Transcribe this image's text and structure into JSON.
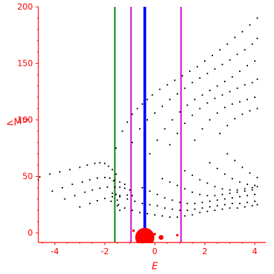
{
  "chart_data": {
    "type": "scatter",
    "title": "",
    "xlabel": "E",
    "ylabel": "<M>",
    "xlim": [
      -5,
      4.2
    ],
    "ylim": [
      -9,
      200
    ],
    "xticks": [
      -4,
      -2,
      0,
      2,
      4
    ],
    "yticks": [
      0,
      50,
      100,
      150,
      200
    ],
    "grid": false,
    "axis_color": "#ff0000",
    "point_color": "#000000",
    "vertical_lines": [
      {
        "x": -1.6,
        "color": "#008000"
      },
      {
        "x": -0.95,
        "color": "#cc00cc"
      },
      {
        "x": -0.4,
        "color": "#0000ff"
      },
      {
        "x": 1.05,
        "color": "#cc00cc"
      }
    ],
    "red_markers": [
      {
        "x": -0.4,
        "y": -4,
        "size": "large"
      },
      {
        "x": 0.25,
        "y": -4,
        "size": "small"
      },
      {
        "x": 0.0,
        "y": -1,
        "size": "tiny"
      },
      {
        "x": 0.9,
        "y": -2,
        "size": "tiny"
      },
      {
        "x": -0.85,
        "y": 2,
        "size": "tiny"
      }
    ],
    "series": [
      {
        "x": [
          -4.95,
          -4.6,
          -4.2,
          -3.8,
          -3.4,
          -3.0,
          -2.7,
          -2.4,
          -2.2,
          -2.0,
          -1.85,
          -1.7,
          -1.55
        ],
        "y": [
          47,
          49.5,
          52,
          54,
          56,
          58,
          60,
          61.5,
          62,
          61.5,
          59,
          56,
          52
        ]
      },
      {
        "x": [
          -4.1,
          -3.7,
          -3.3,
          -2.9,
          -2.6,
          -2.3,
          -2.0,
          -1.8,
          -1.6,
          -1.4,
          -1.2
        ],
        "y": [
          37,
          40,
          43,
          45,
          47,
          48.5,
          49,
          48.5,
          47,
          45,
          43
        ]
      },
      {
        "x": [
          -3.6,
          -3.2,
          -2.8,
          -2.5,
          -2.2,
          -1.9,
          -1.6,
          -1.4,
          -1.2,
          -1.0
        ],
        "y": [
          30,
          33,
          36,
          38,
          39.5,
          40.5,
          41,
          40.5,
          39.5,
          38
        ]
      },
      {
        "x": [
          -3.0,
          -2.6,
          -2.3,
          -2.0,
          -1.7,
          -1.4,
          -1.1,
          -0.9
        ],
        "y": [
          23,
          26,
          28.5,
          30.5,
          32,
          33,
          33.5,
          33
        ]
      },
      {
        "x": [
          -1.55,
          -1.3,
          -1.1,
          -0.9,
          -0.7,
          -0.5,
          -0.3,
          -0.1,
          0.2,
          0.5,
          0.8,
          1.1,
          1.4,
          1.7,
          2.0,
          2.3,
          2.6,
          2.9,
          3.2,
          3.5,
          3.8,
          4.1
        ],
        "y": [
          75,
          90,
          98,
          105,
          110,
          114,
          118,
          122,
          127,
          131,
          135,
          139,
          143,
          147,
          152,
          157,
          162,
          167,
          173,
          178,
          184,
          190
        ]
      },
      {
        "x": [
          -0.9,
          -0.6,
          -0.3,
          0.0,
          0.3,
          0.6,
          0.9,
          1.2,
          1.5,
          1.8,
          2.1,
          2.4,
          2.7,
          3.0,
          3.3,
          3.6,
          3.9,
          4.1
        ],
        "y": [
          80,
          92,
          100,
          106,
          112,
          118,
          123,
          128,
          133,
          137,
          141,
          145,
          149,
          153,
          158,
          162,
          167,
          172
        ]
      },
      {
        "x": [
          -0.2,
          0.1,
          0.4,
          0.7,
          1.0,
          1.3,
          1.6,
          1.9,
          2.2,
          2.5,
          2.8,
          3.1,
          3.4,
          3.7,
          4.0
        ],
        "y": [
          70,
          82,
          92,
          100,
          107,
          113,
          118,
          122,
          126,
          130,
          134,
          138,
          143,
          148,
          152
        ]
      },
      {
        "x": [
          0.6,
          0.9,
          1.2,
          1.5,
          1.8,
          2.1,
          2.4,
          2.7,
          3.0,
          3.3,
          3.6,
          3.9,
          4.1
        ],
        "y": [
          78,
          88,
          97,
          104,
          110,
          115,
          119,
          122,
          125,
          128,
          131,
          133,
          136
        ]
      },
      {
        "x": [
          1.6,
          1.9,
          2.2,
          2.5,
          2.8,
          3.1,
          3.4,
          3.7,
          4.0
        ],
        "y": [
          82,
          92,
          100,
          106,
          111,
          114,
          116,
          118,
          120
        ]
      },
      {
        "x": [
          2.6,
          2.9,
          3.2,
          3.5,
          3.8,
          4.1
        ],
        "y": [
          88,
          95,
          101,
          105,
          108,
          110
        ]
      },
      {
        "x": [
          -1.65,
          -1.6,
          -1.55,
          -1.5,
          -1.45,
          -1.4
        ],
        "y": [
          46,
          40,
          34,
          29,
          25,
          20
        ]
      },
      {
        "x": [
          -1.75,
          -1.5,
          -1.2,
          -0.9,
          -0.6,
          -0.3,
          0.0,
          0.3,
          0.6,
          0.9,
          1.2,
          1.5,
          1.8,
          2.1,
          2.4,
          2.7,
          3.0,
          3.3,
          3.6,
          3.9,
          4.1
        ],
        "y": [
          28,
          24,
          22,
          20,
          18,
          17,
          16,
          15,
          14,
          14,
          15,
          16,
          18,
          19,
          20,
          21,
          22,
          22,
          23,
          24,
          25
        ]
      },
      {
        "x": [
          -1.7,
          -1.4,
          -1.1,
          -0.8,
          -0.5,
          -0.2,
          0.1,
          0.4,
          0.7,
          1.0,
          1.3,
          1.6,
          1.9,
          2.2,
          2.5,
          2.8,
          3.1,
          3.4,
          3.7,
          4.0
        ],
        "y": [
          35,
          32,
          30,
          28,
          26,
          25,
          24,
          22,
          21,
          20,
          20,
          21,
          22,
          23,
          24,
          25,
          26,
          26,
          27,
          28
        ]
      },
      {
        "x": [
          -0.5,
          -0.2,
          0.1,
          0.4,
          0.7,
          1.0,
          1.3,
          1.6,
          1.9,
          2.2,
          2.5,
          2.8,
          3.1,
          3.4,
          3.7,
          4.0
        ],
        "y": [
          40,
          37,
          34,
          31,
          29,
          27,
          26,
          26,
          27,
          28,
          29,
          30,
          31,
          32,
          33,
          34
        ]
      },
      {
        "x": [
          0.3,
          0.6,
          0.9,
          1.2,
          1.5,
          1.8,
          2.1,
          2.4,
          2.7,
          3.0,
          3.3,
          3.6,
          3.9
        ],
        "y": [
          48,
          45,
          42,
          39,
          36,
          34,
          33,
          33,
          34,
          35,
          36,
          37,
          38
        ]
      },
      {
        "x": [
          1.2,
          1.5,
          1.8,
          2.1,
          2.4,
          2.7,
          3.0,
          3.3,
          3.6,
          3.9,
          4.1
        ],
        "y": [
          55,
          51,
          47,
          44,
          41,
          39,
          38,
          38,
          39,
          40,
          41
        ]
      },
      {
        "x": [
          2.2,
          2.5,
          2.8,
          3.1,
          3.4,
          3.7,
          4.0
        ],
        "y": [
          62,
          57,
          52,
          48,
          45,
          43,
          42
        ]
      },
      {
        "x": [
          2.9,
          3.2,
          3.5,
          3.8,
          4.1
        ],
        "y": [
          70,
          64,
          58,
          53,
          49
        ]
      }
    ]
  }
}
